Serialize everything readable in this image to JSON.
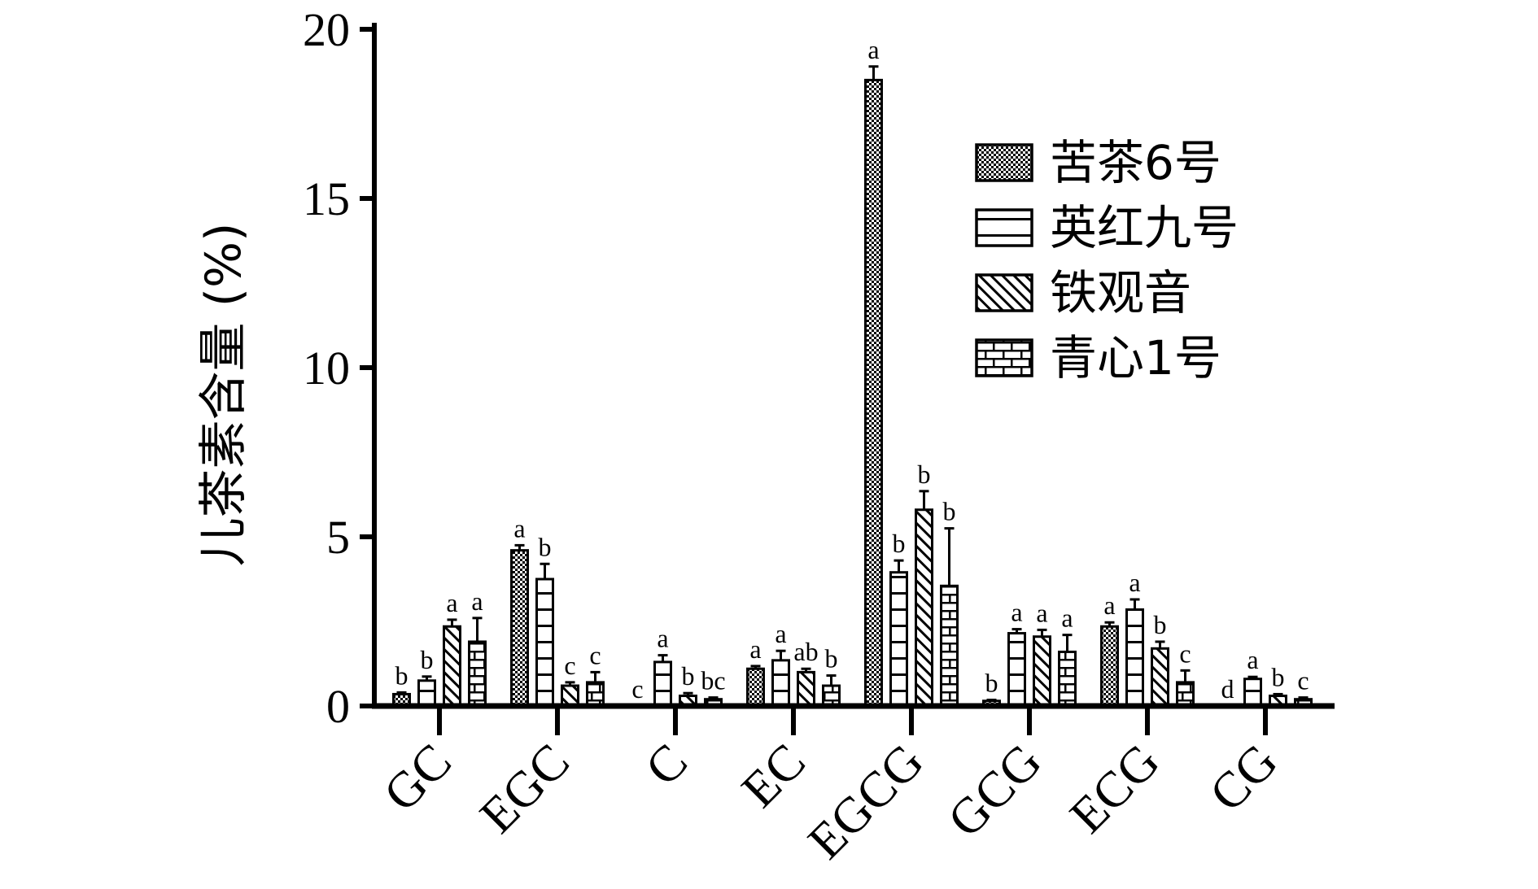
{
  "chart_data": {
    "type": "bar",
    "title": "",
    "xlabel": "",
    "ylabel": "儿茶素含量 (%)",
    "ylim": [
      0,
      20
    ],
    "yticks": [
      0,
      5,
      10,
      15,
      20
    ],
    "grid": false,
    "legend_position": "top-right",
    "categories": [
      "GC",
      "EGC",
      "C",
      "EC",
      "EGCG",
      "GCG",
      "ECG",
      "CG"
    ],
    "series": [
      {
        "name": "苦茶6号",
        "pattern": "checker",
        "values": [
          0.35,
          4.6,
          0,
          1.1,
          18.5,
          0.15,
          2.35,
          0
        ],
        "errors": [
          0.05,
          0.15,
          0,
          0.08,
          0.4,
          0.03,
          0.12,
          0
        ],
        "letters": [
          "b",
          "a",
          "c",
          "a",
          "a",
          "b",
          "a",
          "d"
        ]
      },
      {
        "name": "英红九号",
        "pattern": "hlines",
        "values": [
          0.75,
          3.75,
          1.3,
          1.35,
          3.95,
          2.15,
          2.85,
          0.8
        ],
        "errors": [
          0.12,
          0.45,
          0.2,
          0.28,
          0.35,
          0.12,
          0.3,
          0.06
        ],
        "letters": [
          "b",
          "b",
          "a",
          "a",
          "b",
          "a",
          "a",
          "a"
        ]
      },
      {
        "name": "铁观音",
        "pattern": "diagonal",
        "values": [
          2.35,
          0.6,
          0.3,
          1.0,
          5.8,
          2.05,
          1.7,
          0.3
        ],
        "errors": [
          0.2,
          0.1,
          0.08,
          0.1,
          0.55,
          0.2,
          0.2,
          0.05
        ],
        "letters": [
          "a",
          "c",
          "b",
          "ab",
          "b",
          "a",
          "b",
          "b"
        ]
      },
      {
        "name": "青心1号",
        "pattern": "brick",
        "values": [
          1.9,
          0.7,
          0.2,
          0.6,
          3.55,
          1.6,
          0.7,
          0.2
        ],
        "errors": [
          0.7,
          0.3,
          0.05,
          0.3,
          1.7,
          0.5,
          0.35,
          0.05
        ],
        "letters": [
          "a",
          "c",
          "bc",
          "b",
          "b",
          "a",
          "c",
          "c"
        ]
      }
    ]
  }
}
